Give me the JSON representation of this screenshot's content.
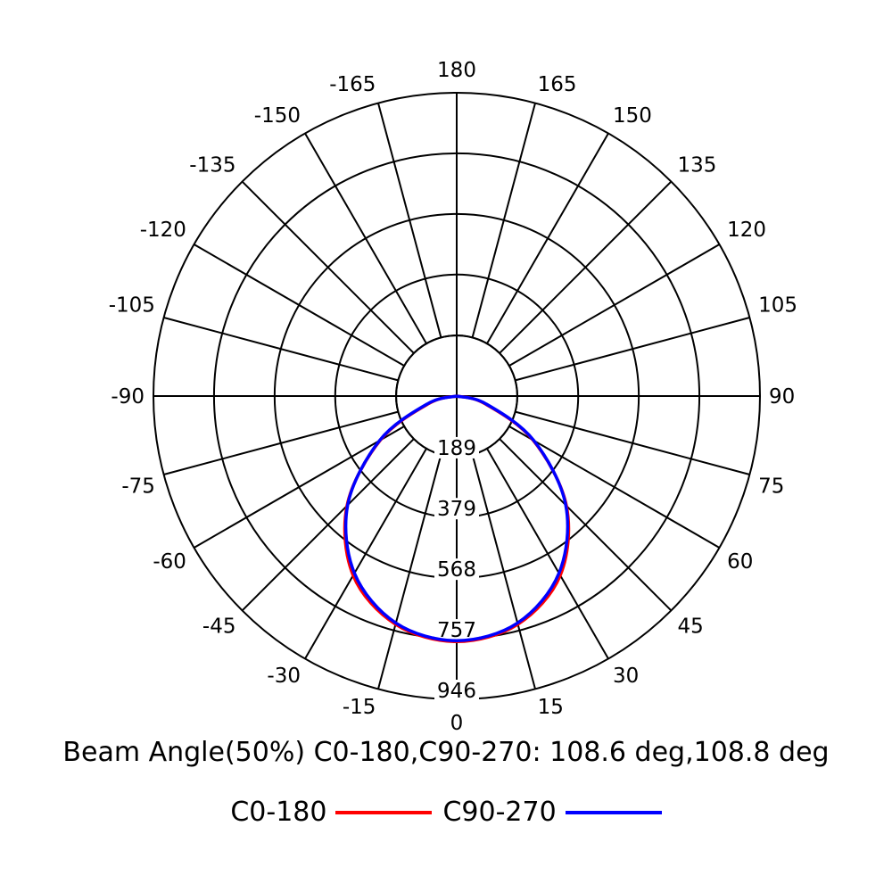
{
  "chart_data": {
    "type": "polar-line",
    "caption": "Beam Angle(50%) C0-180,C90-270: 108.6 deg,108.8 deg",
    "angle_ticks": [
      -165,
      -150,
      -135,
      -120,
      -105,
      -90,
      -75,
      -60,
      -45,
      -30,
      -15,
      0,
      15,
      30,
      45,
      60,
      75,
      90,
      105,
      120,
      135,
      150,
      165,
      180
    ],
    "radial_ticks": [
      189,
      379,
      568,
      757,
      946
    ],
    "rmax": 946,
    "grid": true,
    "legend_position": "bottom",
    "series": [
      {
        "name": "C0-180",
        "color": "#ff0000",
        "angles": [
          -90,
          -75,
          -60,
          -45,
          -30,
          -15,
          0,
          15,
          30,
          45,
          60,
          75,
          90
        ],
        "values": [
          0,
          90,
          275,
          484,
          646,
          737,
          766,
          737,
          646,
          484,
          275,
          90,
          0
        ]
      },
      {
        "name": "C90-270",
        "color": "#0000ff",
        "angles": [
          -90,
          -75,
          -60,
          -45,
          -30,
          -15,
          0,
          15,
          30,
          45,
          60,
          75,
          90
        ],
        "values": [
          0,
          95,
          278,
          481,
          638,
          733,
          763,
          733,
          638,
          481,
          278,
          95,
          0
        ]
      }
    ]
  }
}
